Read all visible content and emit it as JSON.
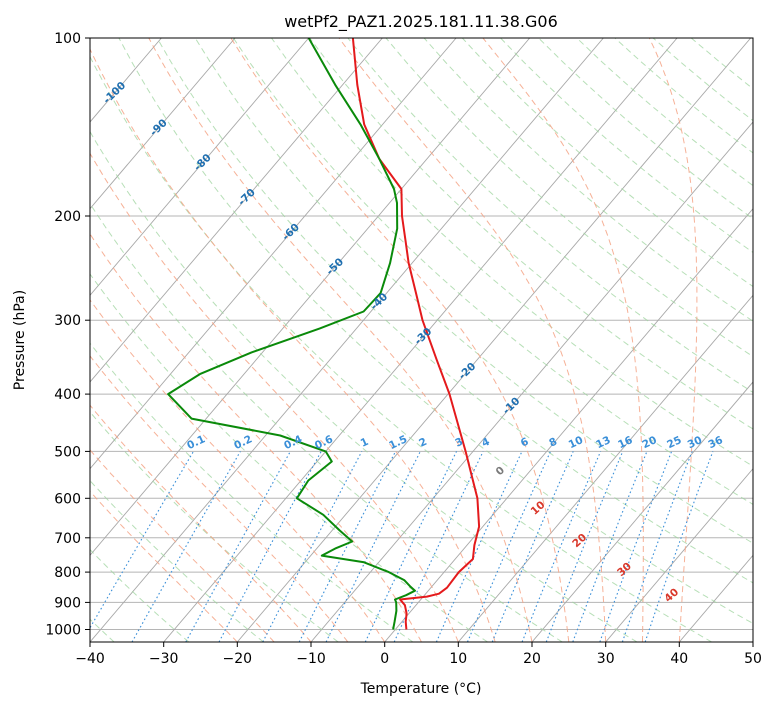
{
  "chart_data": {
    "type": "line",
    "subtype": "skew-t log-p diagram",
    "title": "wetPf2_PAZ1.2025.181.11.38.G06",
    "xlabel": "Temperature (°C)",
    "ylabel": "Pressure (hPa)",
    "xlim": [
      -40,
      50
    ],
    "ylim": [
      1050,
      100
    ],
    "y_scale": "log",
    "x_ticks": [
      -40,
      -30,
      -20,
      -10,
      0,
      10,
      20,
      30,
      40,
      50
    ],
    "y_ticks": [
      100,
      200,
      300,
      400,
      500,
      600,
      700,
      800,
      900,
      1000
    ],
    "grid": true,
    "colors": {
      "temperature": "#e41a1c",
      "dewpoint": "#0a8a0a",
      "isotherm_label": "#1f6fb0",
      "mixing_ratio": "#3a8fd8",
      "moist_adiabat": "#f4a385",
      "dry_adiabat": "#9fd49f",
      "wetbulb_label": "#d9372a"
    },
    "series": [
      {
        "name": "",
        "role": "temperature",
        "points": [
          {
            "p": 1000,
            "t": 1.5
          },
          {
            "p": 970,
            "t": 0.5
          },
          {
            "p": 940,
            "t": -0.3
          },
          {
            "p": 910,
            "t": -1.5
          },
          {
            "p": 890,
            "t": -2.8
          },
          {
            "p": 880,
            "t": 0.5
          },
          {
            "p": 870,
            "t": 1.8
          },
          {
            "p": 850,
            "t": 2.2
          },
          {
            "p": 800,
            "t": 2.0
          },
          {
            "p": 760,
            "t": 2.4
          },
          {
            "p": 720,
            "t": 1.0
          },
          {
            "p": 670,
            "t": -0.5
          },
          {
            "p": 600,
            "t": -4.0
          },
          {
            "p": 500,
            "t": -11.0
          },
          {
            "p": 400,
            "t": -19.8
          },
          {
            "p": 350,
            "t": -25.5
          },
          {
            "p": 300,
            "t": -32.0
          },
          {
            "p": 270,
            "t": -36.0
          },
          {
            "p": 240,
            "t": -40.5
          },
          {
            "p": 220,
            "t": -43.5
          },
          {
            "p": 200,
            "t": -46.8
          },
          {
            "p": 180,
            "t": -50.0
          },
          {
            "p": 160,
            "t": -56.5
          },
          {
            "p": 140,
            "t": -62.5
          },
          {
            "p": 120,
            "t": -68.0
          },
          {
            "p": 100,
            "t": -74.0
          }
        ]
      },
      {
        "name": "",
        "role": "dewpoint",
        "points": [
          {
            "p": 1000,
            "t": -0.3
          },
          {
            "p": 970,
            "t": -1.0
          },
          {
            "p": 930,
            "t": -2.0
          },
          {
            "p": 900,
            "t": -3.0
          },
          {
            "p": 890,
            "t": -3.5
          },
          {
            "p": 875,
            "t": -2.5
          },
          {
            "p": 860,
            "t": -1.8
          },
          {
            "p": 845,
            "t": -3.0
          },
          {
            "p": 825,
            "t": -4.5
          },
          {
            "p": 800,
            "t": -7.5
          },
          {
            "p": 770,
            "t": -12.0
          },
          {
            "p": 750,
            "t": -18.5
          },
          {
            "p": 730,
            "t": -17.5
          },
          {
            "p": 710,
            "t": -16.0
          },
          {
            "p": 680,
            "t": -19.0
          },
          {
            "p": 640,
            "t": -23.0
          },
          {
            "p": 600,
            "t": -28.5
          },
          {
            "p": 560,
            "t": -29.0
          },
          {
            "p": 520,
            "t": -28.0
          },
          {
            "p": 500,
            "t": -30.0
          },
          {
            "p": 470,
            "t": -38.0
          },
          {
            "p": 440,
            "t": -52.0
          },
          {
            "p": 400,
            "t": -58.0
          },
          {
            "p": 370,
            "t": -56.0
          },
          {
            "p": 340,
            "t": -51.5
          },
          {
            "p": 310,
            "t": -45.0
          },
          {
            "p": 290,
            "t": -41.0
          },
          {
            "p": 270,
            "t": -40.8
          },
          {
            "p": 240,
            "t": -43.0
          },
          {
            "p": 210,
            "t": -46.0
          },
          {
            "p": 190,
            "t": -49.0
          },
          {
            "p": 180,
            "t": -51.0
          },
          {
            "p": 160,
            "t": -56.5
          },
          {
            "p": 140,
            "t": -63.0
          },
          {
            "p": 120,
            "t": -71.0
          },
          {
            "p": 100,
            "t": -80.0
          }
        ]
      }
    ],
    "isotherm_labels": [
      "-100",
      "-90",
      "-80",
      "-70",
      "-60",
      "-50",
      "-40",
      "-30",
      "-20",
      "-10"
    ],
    "mixing_ratio_labels": [
      "0.1",
      "0.2",
      "0.4",
      "0.6",
      "1",
      "1.5",
      "2",
      "3",
      "4",
      "6",
      "8",
      "10",
      "13",
      "16",
      "20",
      "25",
      "30",
      "36"
    ],
    "wetbulb_labels": [
      "0",
      "10",
      "20",
      "30",
      "40"
    ]
  }
}
